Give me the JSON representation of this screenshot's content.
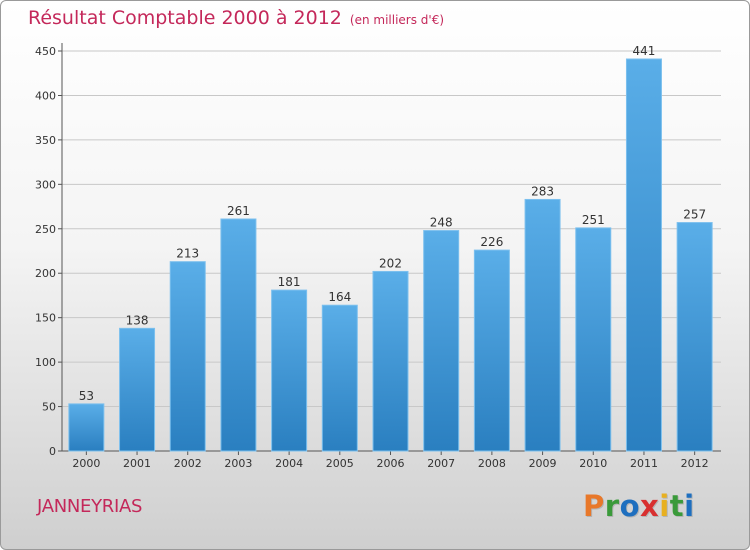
{
  "chart_data": {
    "type": "bar",
    "title": "Résultat Comptable 2000 à 2012",
    "subtitle": "(en milliers d'€)",
    "categories": [
      "2000",
      "2001",
      "2002",
      "2003",
      "2004",
      "2005",
      "2006",
      "2007",
      "2008",
      "2009",
      "2010",
      "2011",
      "2012"
    ],
    "values": [
      53,
      138,
      213,
      261,
      181,
      164,
      202,
      248,
      226,
      283,
      251,
      441,
      257
    ],
    "yticks": [
      0,
      50,
      100,
      150,
      200,
      250,
      300,
      350,
      400,
      450
    ],
    "ylim": [
      0,
      450
    ],
    "xlabel": "",
    "ylabel": "",
    "grid": true,
    "bar_color_top": "#5aaee8",
    "bar_color_bottom": "#2a7fc0"
  },
  "footer": {
    "town": "JANNEYRIAS",
    "logo_letters": [
      {
        "char": "P",
        "color": "#e8782a"
      },
      {
        "char": "r",
        "color": "#3a9a3a"
      },
      {
        "char": "o",
        "color": "#1e6fbf"
      },
      {
        "char": "x",
        "color": "#d83030"
      },
      {
        "char": "i",
        "color": "#e8b020"
      },
      {
        "char": "t",
        "color": "#3a9a3a"
      },
      {
        "char": "i",
        "color": "#1e6fbf"
      }
    ]
  }
}
